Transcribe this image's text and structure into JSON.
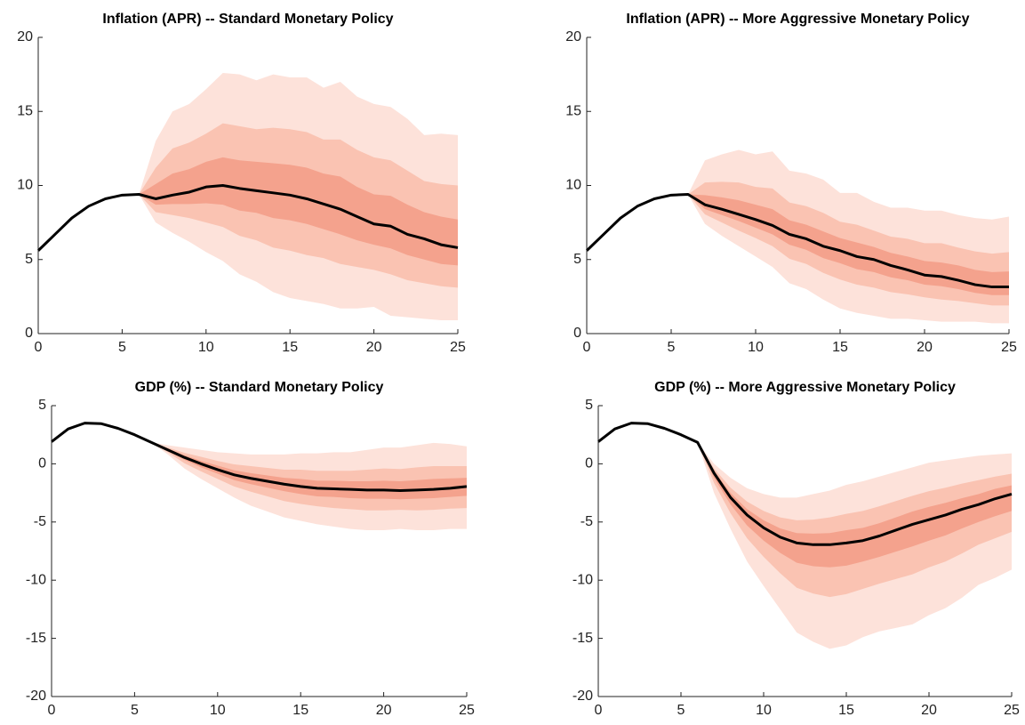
{
  "chart_data": [
    {
      "type": "fan",
      "title": "Inflation (APR) -- Standard Monetary Policy",
      "x": [
        0,
        1,
        2,
        3,
        4,
        5,
        6,
        7,
        8,
        9,
        10,
        11,
        12,
        13,
        14,
        15,
        16,
        17,
        18,
        19,
        20,
        21,
        22,
        23,
        24,
        25
      ],
      "values": [
        5.6,
        6.7,
        7.8,
        8.6,
        9.1,
        9.35,
        9.4,
        9.1,
        9.35,
        9.55,
        9.9,
        10.0,
        9.8,
        9.65,
        9.5,
        9.35,
        9.1,
        8.75,
        8.4,
        7.9,
        7.4,
        7.25,
        6.7,
        6.4,
        6.0,
        5.8
      ],
      "line_color": "#000000",
      "band_x": [
        6,
        7,
        8,
        9,
        10,
        11,
        12,
        13,
        14,
        15,
        16,
        17,
        18,
        19,
        20,
        21,
        22,
        23,
        24,
        25
      ],
      "bands": [
        {
          "color": "#fde2da",
          "upper": [
            9.4,
            13,
            15,
            15.5,
            16.5,
            17.6,
            17.5,
            17.1,
            17.5,
            17.3,
            17.3,
            16.6,
            17,
            16,
            15.5,
            15.3,
            14.5,
            13.4,
            13.5,
            13.4
          ],
          "lower": [
            9.4,
            7.5,
            6.8,
            6.2,
            5.5,
            4.9,
            4.0,
            3.5,
            2.8,
            2.4,
            2.2,
            2.0,
            1.7,
            1.7,
            1.8,
            1.2,
            1.1,
            1.0,
            0.9,
            0.9
          ]
        },
        {
          "color": "#fac3b2",
          "upper": [
            9.4,
            11.2,
            12.5,
            12.9,
            13.5,
            14.2,
            14,
            13.8,
            13.9,
            13.8,
            13.6,
            13.1,
            13.1,
            12.4,
            11.9,
            11.7,
            11,
            10.3,
            10.1,
            10
          ],
          "lower": [
            9.4,
            8.2,
            8,
            7.8,
            7.5,
            7.2,
            6.6,
            6.3,
            5.8,
            5.6,
            5.3,
            5.1,
            4.7,
            4.5,
            4.3,
            4,
            3.6,
            3.4,
            3.2,
            3.1
          ]
        },
        {
          "color": "#f4a28d",
          "upper": [
            9.4,
            10.1,
            10.8,
            11.1,
            11.6,
            11.9,
            11.7,
            11.6,
            11.5,
            11.4,
            11.2,
            10.8,
            10.6,
            9.9,
            9.4,
            9.3,
            8.7,
            8.2,
            7.9,
            7.7
          ],
          "lower": [
            9.4,
            8.7,
            8.75,
            8.75,
            8.8,
            8.7,
            8.3,
            8.15,
            7.8,
            7.65,
            7.4,
            7.05,
            6.7,
            6.3,
            6,
            5.75,
            5.3,
            5,
            4.7,
            4.6
          ]
        }
      ],
      "xlim": [
        0,
        25
      ],
      "xticks": [
        0,
        5,
        10,
        15,
        20,
        25
      ],
      "ylim": [
        0,
        20
      ],
      "yticks": [
        0,
        5,
        10,
        15,
        20
      ]
    },
    {
      "type": "fan",
      "title": "Inflation (APR) -- More Aggressive Monetary Policy",
      "x": [
        0,
        1,
        2,
        3,
        4,
        5,
        6,
        7,
        8,
        9,
        10,
        11,
        12,
        13,
        14,
        15,
        16,
        17,
        18,
        19,
        20,
        21,
        22,
        23,
        24,
        25
      ],
      "values": [
        5.6,
        6.7,
        7.8,
        8.6,
        9.1,
        9.35,
        9.4,
        8.7,
        8.4,
        8.05,
        7.7,
        7.3,
        6.7,
        6.4,
        5.9,
        5.6,
        5.2,
        5.0,
        4.6,
        4.3,
        3.95,
        3.85,
        3.6,
        3.3,
        3.15,
        3.15
      ],
      "line_color": "#000000",
      "band_x": [
        6,
        7,
        8,
        9,
        10,
        11,
        12,
        13,
        14,
        15,
        16,
        17,
        18,
        19,
        20,
        21,
        22,
        23,
        24,
        25
      ],
      "bands": [
        {
          "color": "#fde2da",
          "upper": [
            9.4,
            11.7,
            12.1,
            12.4,
            12.1,
            12.3,
            11,
            10.8,
            10.4,
            9.5,
            9.5,
            8.9,
            8.5,
            8.5,
            8.3,
            8.3,
            8,
            7.8,
            7.7,
            7.9
          ],
          "lower": [
            9.4,
            7.4,
            6.6,
            5.9,
            5.2,
            4.5,
            3.4,
            3,
            2.3,
            1.7,
            1.4,
            1.2,
            1.0,
            1.0,
            0.9,
            0.8,
            0.8,
            0.8,
            0.7,
            0.7
          ]
        },
        {
          "color": "#fac3b2",
          "upper": [
            9.4,
            10.2,
            10.25,
            10.2,
            9.9,
            9.8,
            8.85,
            8.6,
            8.15,
            7.55,
            7.35,
            6.95,
            6.55,
            6.4,
            6.1,
            6.1,
            5.8,
            5.55,
            5.4,
            5.5
          ],
          "lower": [
            9.4,
            8.05,
            7.5,
            6.95,
            6.45,
            5.9,
            5.05,
            4.7,
            4.1,
            3.65,
            3.3,
            3.1,
            2.8,
            2.65,
            2.45,
            2.3,
            2.2,
            2.05,
            1.9,
            1.9
          ]
        },
        {
          "color": "#f4a28d",
          "upper": [
            9.4,
            9.35,
            9.2,
            9,
            8.7,
            8.4,
            7.65,
            7.35,
            6.9,
            6.45,
            6.15,
            5.85,
            5.45,
            5.2,
            4.9,
            4.8,
            4.6,
            4.3,
            4.15,
            4.2
          ],
          "lower": [
            9.4,
            8.4,
            8,
            7.6,
            7.15,
            6.7,
            6,
            5.65,
            5.1,
            4.75,
            4.35,
            4.15,
            3.8,
            3.6,
            3.3,
            3.2,
            3,
            2.75,
            2.6,
            2.6
          ]
        }
      ],
      "xlim": [
        0,
        25
      ],
      "xticks": [
        0,
        5,
        10,
        15,
        20,
        25
      ],
      "ylim": [
        0,
        20
      ],
      "yticks": [
        0,
        5,
        10,
        15,
        20
      ]
    },
    {
      "type": "fan",
      "title": "GDP (%) -- Standard Monetary Policy",
      "x": [
        0,
        1,
        2,
        3,
        4,
        5,
        6,
        7,
        8,
        9,
        10,
        11,
        12,
        13,
        14,
        15,
        16,
        17,
        18,
        19,
        20,
        21,
        22,
        23,
        24,
        25
      ],
      "values": [
        1.9,
        3.0,
        3.5,
        3.45,
        3.05,
        2.5,
        1.85,
        1.2,
        0.55,
        0,
        -0.5,
        -0.95,
        -1.25,
        -1.5,
        -1.75,
        -1.95,
        -2.1,
        -2.15,
        -2.2,
        -2.25,
        -2.25,
        -2.3,
        -2.25,
        -2.2,
        -2.1,
        -1.95
      ],
      "line_color": "#000000",
      "band_x": [
        6,
        7,
        8,
        9,
        10,
        11,
        12,
        13,
        14,
        15,
        16,
        17,
        18,
        19,
        20,
        21,
        22,
        23,
        24,
        25
      ],
      "bands": [
        {
          "color": "#fde2da",
          "upper": [
            1.85,
            1.6,
            1.4,
            1.2,
            1.0,
            0.9,
            0.8,
            0.8,
            0.8,
            0.9,
            0.9,
            1.0,
            1.0,
            1.2,
            1.4,
            1.4,
            1.6,
            1.8,
            1.7,
            1.5
          ],
          "lower": [
            1.85,
            0.8,
            -0.4,
            -1.3,
            -2.1,
            -2.9,
            -3.6,
            -4.1,
            -4.6,
            -4.9,
            -5.2,
            -5.4,
            -5.6,
            -5.7,
            -5.7,
            -5.6,
            -5.7,
            -5.7,
            -5.6,
            -5.6
          ]
        },
        {
          "color": "#fac3b2",
          "upper": [
            1.85,
            1.4,
            0.95,
            0.6,
            0.25,
            -0.05,
            -0.2,
            -0.35,
            -0.5,
            -0.5,
            -0.6,
            -0.6,
            -0.6,
            -0.5,
            -0.4,
            -0.45,
            -0.3,
            -0.2,
            -0.2,
            -0.2
          ],
          "lower": [
            1.85,
            1,
            0.05,
            -0.65,
            -1.3,
            -1.95,
            -2.4,
            -2.8,
            -3.2,
            -3.45,
            -3.65,
            -3.8,
            -3.9,
            -4,
            -4,
            -3.95,
            -4,
            -3.95,
            -3.85,
            -3.8
          ]
        },
        {
          "color": "#f4a28d",
          "upper": [
            1.85,
            1.3,
            0.75,
            0.25,
            -0.15,
            -0.55,
            -0.8,
            -1,
            -1.2,
            -1.3,
            -1.45,
            -1.45,
            -1.5,
            -1.5,
            -1.45,
            -1.5,
            -1.4,
            -1.3,
            -1.25,
            -1.2
          ],
          "lower": [
            1.85,
            1.1,
            0.35,
            -0.3,
            -0.85,
            -1.4,
            -1.75,
            -2.05,
            -2.35,
            -2.6,
            -2.8,
            -2.85,
            -2.95,
            -3,
            -3,
            -3.05,
            -3,
            -2.95,
            -2.85,
            -2.75
          ]
        }
      ],
      "xlim": [
        0,
        25
      ],
      "xticks": [
        0,
        5,
        10,
        15,
        20,
        25
      ],
      "ylim": [
        -20,
        5
      ],
      "yticks": [
        -20,
        -15,
        -10,
        -5,
        0,
        5
      ]
    },
    {
      "type": "fan",
      "title": "GDP (%) -- More Aggressive Monetary Policy",
      "x": [
        0,
        1,
        2,
        3,
        4,
        5,
        6,
        7,
        8,
        9,
        10,
        11,
        12,
        13,
        14,
        15,
        16,
        17,
        18,
        19,
        20,
        21,
        22,
        23,
        24,
        25
      ],
      "values": [
        1.9,
        3.0,
        3.5,
        3.45,
        3.05,
        2.5,
        1.85,
        -0.8,
        -2.9,
        -4.4,
        -5.5,
        -6.3,
        -6.8,
        -6.95,
        -6.95,
        -6.8,
        -6.6,
        -6.2,
        -5.7,
        -5.2,
        -4.8,
        -4.4,
        -3.9,
        -3.5,
        -3.0,
        -2.6
      ],
      "line_color": "#000000",
      "band_x": [
        6,
        7,
        8,
        9,
        10,
        11,
        12,
        13,
        14,
        15,
        16,
        17,
        18,
        19,
        20,
        21,
        22,
        23,
        24,
        25
      ],
      "bands": [
        {
          "color": "#fde2da",
          "upper": [
            1.85,
            0,
            -1.2,
            -2.1,
            -2.6,
            -2.9,
            -2.9,
            -2.6,
            -2.3,
            -1.8,
            -1.5,
            -1.1,
            -0.7,
            -0.3,
            0.1,
            0.3,
            0.5,
            0.7,
            0.8,
            0.9
          ],
          "lower": [
            1.85,
            -2.5,
            -5.6,
            -8.4,
            -10.5,
            -12.5,
            -14.5,
            -15.3,
            -15.9,
            -15.6,
            -14.9,
            -14.4,
            -14.1,
            -13.8,
            -13,
            -12.4,
            -11.5,
            -10.4,
            -9.8,
            -9.1
          ]
        },
        {
          "color": "#fac3b2",
          "upper": [
            1.85,
            -0.4,
            -2.05,
            -3.25,
            -4.05,
            -4.6,
            -4.85,
            -4.8,
            -4.6,
            -4.3,
            -4.05,
            -3.65,
            -3.2,
            -2.75,
            -2.35,
            -2.05,
            -1.7,
            -1.4,
            -1.1,
            -0.85
          ],
          "lower": [
            1.85,
            -1.65,
            -4.25,
            -6.4,
            -8,
            -9.4,
            -10.65,
            -11.15,
            -11.45,
            -11.2,
            -10.75,
            -10.3,
            -9.9,
            -9.5,
            -8.9,
            -8.4,
            -7.7,
            -6.95,
            -6.4,
            -5.85
          ]
        },
        {
          "color": "#f4a28d",
          "upper": [
            1.85,
            -0.6,
            -2.5,
            -3.9,
            -4.85,
            -5.55,
            -5.95,
            -6,
            -5.95,
            -5.7,
            -5.5,
            -5.1,
            -4.6,
            -4.1,
            -3.7,
            -3.35,
            -2.95,
            -2.6,
            -2.15,
            -1.85
          ],
          "lower": [
            1.85,
            -1.2,
            -3.5,
            -5.3,
            -6.6,
            -7.65,
            -8.5,
            -8.8,
            -8.9,
            -8.75,
            -8.4,
            -8,
            -7.55,
            -7.1,
            -6.6,
            -6.15,
            -5.55,
            -5,
            -4.5,
            -4.05
          ]
        }
      ],
      "xlim": [
        0,
        25
      ],
      "xticks": [
        0,
        5,
        10,
        15,
        20,
        25
      ],
      "ylim": [
        -20,
        5
      ],
      "yticks": [
        -20,
        -15,
        -10,
        -5,
        0,
        5
      ]
    }
  ]
}
